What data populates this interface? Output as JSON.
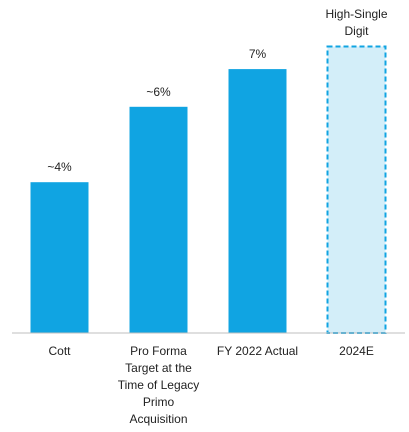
{
  "chart_data": {
    "type": "bar",
    "categories": [
      "Cott",
      "Pro Forma Target at the Time of Legacy Primo Acquisition",
      "FY 2022 Actual",
      "2024E"
    ],
    "values": [
      4,
      6,
      7,
      7.6
    ],
    "value_labels": [
      "~4%",
      "~6%",
      "7%",
      "High-Single Digit"
    ],
    "color": "#10a4e2",
    "dashed_indices": [
      3
    ],
    "dashed_fill": "#d3eef9"
  }
}
